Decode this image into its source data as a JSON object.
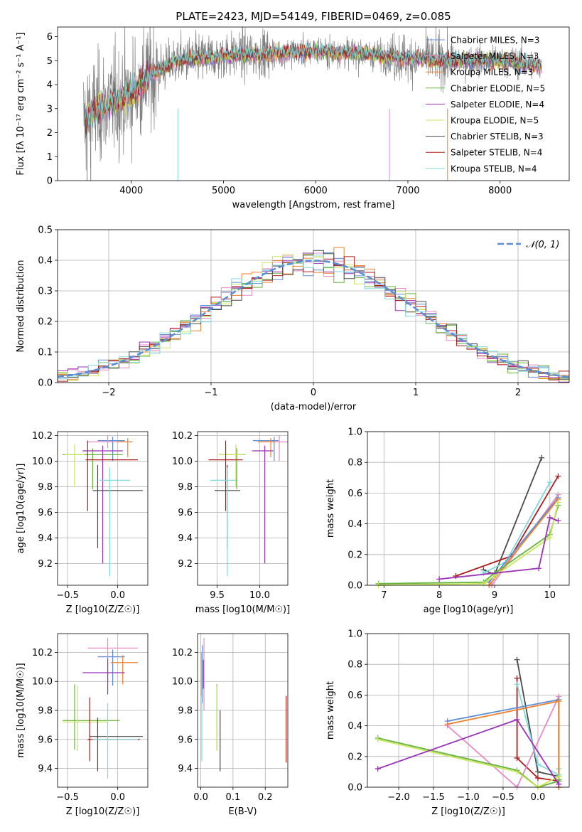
{
  "chart_data": [
    {
      "id": "spectrum",
      "type": "line",
      "title": "PLATE=2423, MJD=54149, FIBERID=0469, z=0.085",
      "xlabel": "wavelength [Angstrom, rest frame]",
      "ylabel": "Flux [fλ 10⁻¹⁷ erg cm⁻² s⁻¹ A⁻¹]",
      "xlim": [
        3200,
        8750
      ],
      "ylim": [
        0,
        6.4
      ],
      "xticks": [
        4000,
        5000,
        6000,
        7000,
        8000
      ],
      "yticks": [
        0,
        1,
        2,
        3,
        4,
        5,
        6
      ],
      "grid": false,
      "legend_position": "right",
      "legend": [
        {
          "label": "Chabrier MILES, N_SSP=3",
          "color": "#5b8ed6"
        },
        {
          "label": "Salpeter MILES, N_SSP=3",
          "color": "#e98ac6"
        },
        {
          "label": "Kroupa MILES, N_SSP=3",
          "color": "#f07f2c"
        },
        {
          "label": "Chabrier ELODIE, N_SSP=5",
          "color": "#66b33d"
        },
        {
          "label": "Salpeter ELODIE, N_SSP=4",
          "color": "#9b32b8"
        },
        {
          "label": "Kroupa ELODIE, N_SSP=5",
          "color": "#c8e65a"
        },
        {
          "label": "Chabrier STELIB, N_SSP=3",
          "color": "#4a4a4a"
        },
        {
          "label": "Salpeter STELIB, N_SSP=4",
          "color": "#b01c1c"
        },
        {
          "label": "Kroupa STELIB, N_SSP=4",
          "color": "#7fd9dc"
        }
      ],
      "data_color": "#808080",
      "data_approx": {
        "wave": [
          3500,
          3600,
          3800,
          4000,
          4200,
          4500,
          5000,
          5500,
          6000,
          6500,
          7000,
          7500,
          8000,
          8400
        ],
        "flux": [
          2.6,
          2.9,
          3.3,
          3.6,
          4.4,
          5.0,
          5.2,
          5.3,
          5.4,
          5.3,
          5.1,
          5.0,
          5.0,
          4.8
        ]
      }
    },
    {
      "id": "residuals",
      "type": "histogram",
      "xlabel": "(data-model)/error",
      "ylabel": "Normed distribution",
      "xlim": [
        -2.5,
        2.5
      ],
      "ylim": [
        0,
        0.5
      ],
      "xticks": [
        -2,
        -1,
        0,
        1,
        2
      ],
      "yticks": [
        0.0,
        0.1,
        0.2,
        0.3,
        0.4,
        0.5
      ],
      "grid": true,
      "legend": [
        {
          "label": "𝒩(0, 1)",
          "color": "#5b8ed6",
          "dashed": true
        }
      ],
      "bin_width": 0.1,
      "reference_curve": "normal(0,1)"
    },
    {
      "id": "age_vs_Z",
      "type": "errorbar",
      "xlabel": "Z [log10(Z/Z☉)]",
      "ylabel": "age  [log10(age/yr)]",
      "xlim": [
        -0.6,
        0.3
      ],
      "ylim": [
        9.03,
        10.23
      ],
      "xticks": [
        -0.5,
        0.0
      ],
      "yticks": [
        9.2,
        9.4,
        9.6,
        9.8,
        10.0,
        10.2
      ],
      "grid": true,
      "points": [
        {
          "color": "#5b8ed6",
          "x": -0.05,
          "xerr": [
            0.15,
            0.12
          ],
          "y": 10.16,
          "yerr": [
            0.16,
            0.03
          ]
        },
        {
          "color": "#e98ac6",
          "x": -0.1,
          "xerr": [
            0.2,
            0.2
          ],
          "y": 10.15,
          "yerr": [
            0.05,
            0.05
          ]
        },
        {
          "color": "#f07f2c",
          "x": 0.1,
          "xerr": [
            0.1,
            0.05
          ],
          "y": 10.15,
          "yerr": [
            0.12,
            0.03
          ]
        },
        {
          "color": "#66b33d",
          "x": -0.25,
          "xerr": [
            0.3,
            0.3
          ],
          "y": 10.05,
          "yerr": [
            0.27,
            0.05
          ]
        },
        {
          "color": "#9b32b8",
          "x": -0.15,
          "xerr": [
            0.2,
            0.2
          ],
          "y": 10.08,
          "yerr": [
            0.88,
            0.04
          ]
        },
        {
          "color": "#c8e65a",
          "x": -0.43,
          "xerr": [
            0.1,
            0.1
          ],
          "y": 10.05,
          "yerr": [
            0.25,
            0.08
          ]
        },
        {
          "color": "#4a4a4a",
          "x": -0.2,
          "xerr": [
            0.05,
            0.45
          ],
          "y": 9.77,
          "yerr": [
            0.45,
            0.2
          ]
        },
        {
          "color": "#b01c1c",
          "x": -0.3,
          "xerr": [
            0.02,
            0.5
          ],
          "y": 10.01,
          "yerr": [
            0.4,
            0.15
          ]
        },
        {
          "color": "#7fd9dc",
          "x": -0.08,
          "xerr": [
            0.1,
            0.2
          ],
          "y": 9.85,
          "yerr": [
            0.75,
            0.1
          ]
        }
      ]
    },
    {
      "id": "age_vs_mass",
      "type": "errorbar",
      "xlabel": "mass [log10(M/M☉)]",
      "ylabel": "",
      "xlim": [
        9.27,
        10.33
      ],
      "ylim": [
        9.03,
        10.23
      ],
      "xticks": [
        9.5,
        10.0
      ],
      "yticks": [
        9.2,
        9.4,
        9.6,
        9.8,
        10.0,
        10.2
      ],
      "grid": true,
      "points": [
        {
          "color": "#5b8ed6",
          "x": 10.17,
          "xerr": [
            0.25,
            0.05
          ],
          "y": 10.16,
          "yerr": [
            0.16,
            0.03
          ]
        },
        {
          "color": "#e98ac6",
          "x": 10.23,
          "xerr": [
            0.25,
            0.1
          ],
          "y": 10.15,
          "yerr": [
            0.15,
            0.05
          ]
        },
        {
          "color": "#f07f2c",
          "x": 10.13,
          "xerr": [
            0.15,
            0.05
          ],
          "y": 10.15,
          "yerr": [
            0.12,
            0.03
          ]
        },
        {
          "color": "#66b33d",
          "x": 9.73,
          "xerr": [
            0.2,
            0.1
          ],
          "y": 10.05,
          "yerr": [
            0.27,
            0.05
          ]
        },
        {
          "color": "#9b32b8",
          "x": 10.06,
          "xerr": [
            0.15,
            0.1
          ],
          "y": 10.08,
          "yerr": [
            0.88,
            0.04
          ]
        },
        {
          "color": "#c8e65a",
          "x": 9.72,
          "xerr": [
            0.2,
            0.1
          ],
          "y": 10.05,
          "yerr": [
            0.25,
            0.08
          ]
        },
        {
          "color": "#4a4a4a",
          "x": 9.62,
          "xerr": [
            0.15,
            0.15
          ],
          "y": 9.77,
          "yerr": [
            0.45,
            0.2
          ]
        },
        {
          "color": "#b01c1c",
          "x": 9.6,
          "xerr": [
            0.2,
            0.2
          ],
          "y": 10.01,
          "yerr": [
            0.4,
            0.15
          ]
        },
        {
          "color": "#7fd9dc",
          "x": 9.62,
          "xerr": [
            0.2,
            0.1
          ],
          "y": 9.85,
          "yerr": [
            0.75,
            0.1
          ]
        }
      ]
    },
    {
      "id": "weight_vs_age",
      "type": "line",
      "xlabel": "age  [log10(age/yr)]",
      "ylabel": "mass weight",
      "xlim": [
        6.7,
        10.35
      ],
      "ylim": [
        0,
        1.0
      ],
      "xticks": [
        7,
        8,
        9,
        10
      ],
      "yticks": [
        0.0,
        0.2,
        0.4,
        0.6,
        0.8,
        1.0
      ],
      "grid": true,
      "series": [
        {
          "color": "#4a4a4a",
          "x": [
            8.8,
            9.0,
            9.85
          ],
          "y": [
            0.1,
            0.07,
            0.83
          ]
        },
        {
          "color": "#b01c1c",
          "x": [
            8.3,
            9.3,
            10.15
          ],
          "y": [
            0.06,
            0.19,
            0.71
          ]
        },
        {
          "color": "#7fd9dc",
          "x": [
            8.8,
            9.2,
            10.0
          ],
          "y": [
            0.08,
            0.15,
            0.67
          ]
        },
        {
          "color": "#e98ac6",
          "x": [
            8.95,
            10.15
          ],
          "y": [
            0.0,
            0.59
          ]
        },
        {
          "color": "#5b8ed6",
          "x": [
            8.9,
            10.15
          ],
          "y": [
            0.02,
            0.57
          ]
        },
        {
          "color": "#f07f2c",
          "x": [
            8.9,
            10.15
          ],
          "y": [
            0.0,
            0.56
          ]
        },
        {
          "color": "#66b33d",
          "x": [
            6.9,
            8.8,
            9.0,
            10.0,
            10.15
          ],
          "y": [
            0.01,
            0.02,
            0.08,
            0.33,
            0.52
          ]
        },
        {
          "color": "#c8e65a",
          "x": [
            6.9,
            8.8,
            9.0,
            10.0,
            10.15
          ],
          "y": [
            0.0,
            0.01,
            0.06,
            0.31,
            0.54
          ]
        },
        {
          "color": "#9b32b8",
          "x": [
            8.0,
            9.8,
            10.0,
            10.15
          ],
          "y": [
            0.04,
            0.11,
            0.44,
            0.42
          ]
        }
      ]
    },
    {
      "id": "mass_vs_Z",
      "type": "errorbar",
      "xlabel": "Z [log10(Z/Z☉)]",
      "ylabel": "mass [log10(M/M☉)]",
      "xlim": [
        -0.6,
        0.3
      ],
      "ylim": [
        9.27,
        10.33
      ],
      "xticks": [
        -0.5,
        0.0
      ],
      "yticks": [
        9.4,
        9.6,
        9.8,
        10.0,
        10.2
      ],
      "grid": true,
      "points": [
        {
          "color": "#5b8ed6",
          "x": -0.05,
          "xerr": [
            0.15,
            0.12
          ],
          "y": 10.17,
          "yerr": [
            0.2,
            0.05
          ]
        },
        {
          "color": "#e98ac6",
          "x": -0.1,
          "xerr": [
            0.2,
            0.3
          ],
          "y": 10.23,
          "yerr": [
            0.25,
            0.07
          ]
        },
        {
          "color": "#f07f2c",
          "x": 0.05,
          "xerr": [
            0.12,
            0.15
          ],
          "y": 10.13,
          "yerr": [
            0.15,
            0.05
          ]
        },
        {
          "color": "#66b33d",
          "x": -0.43,
          "xerr": [
            0.12,
            0.45
          ],
          "y": 9.73,
          "yerr": [
            0.2,
            0.25
          ]
        },
        {
          "color": "#9b32b8",
          "x": -0.1,
          "xerr": [
            0.25,
            0.17
          ],
          "y": 10.06,
          "yerr": [
            0.15,
            0.1
          ]
        },
        {
          "color": "#c8e65a",
          "x": -0.4,
          "xerr": [
            0.15,
            0.3
          ],
          "y": 9.72,
          "yerr": [
            0.2,
            0.25
          ]
        },
        {
          "color": "#4a4a4a",
          "x": -0.2,
          "xerr": [
            0.08,
            0.45
          ],
          "y": 9.62,
          "yerr": [
            0.24,
            0.13
          ]
        },
        {
          "color": "#b01c1c",
          "x": -0.28,
          "xerr": [
            0.02,
            0.5
          ],
          "y": 9.6,
          "yerr": [
            0.15,
            0.29
          ]
        },
        {
          "color": "#7fd9dc",
          "x": -0.1,
          "xerr": [
            0.15,
            0.3
          ],
          "y": 9.6,
          "yerr": [
            0.27,
            0.25
          ]
        }
      ]
    },
    {
      "id": "mass_vs_EBV",
      "type": "errorbar",
      "xlabel": "E(B-V)",
      "ylabel": "",
      "xlim": [
        -0.01,
        0.27
      ],
      "ylim": [
        9.27,
        10.33
      ],
      "xticks": [
        0.0,
        0.1,
        0.2
      ],
      "yticks": [
        9.4,
        9.6,
        9.8,
        10.0,
        10.2
      ],
      "grid": true,
      "points": [
        {
          "color": "#5b8ed6",
          "x": 0.005,
          "xerr": [
            0,
            0
          ],
          "y": 10.05,
          "yerr": [
            0.2,
            0.2
          ]
        },
        {
          "color": "#e98ac6",
          "x": 0.01,
          "xerr": [
            0,
            0
          ],
          "y": 10.1,
          "yerr": [
            0.3,
            0.2
          ]
        },
        {
          "color": "#f07f2c",
          "x": 0.002,
          "xerr": [
            0,
            0
          ],
          "y": 10.0,
          "yerr": [
            0.1,
            0.2
          ]
        },
        {
          "color": "#66b33d",
          "x": 0.05,
          "xerr": [
            0,
            0
          ],
          "y": 9.73,
          "yerr": [
            0.2,
            0.25
          ]
        },
        {
          "color": "#9b32b8",
          "x": 0.008,
          "xerr": [
            0,
            0
          ],
          "y": 10.05,
          "yerr": [
            0.1,
            0.1
          ]
        },
        {
          "color": "#c8e65a",
          "x": 0.05,
          "xerr": [
            0,
            0
          ],
          "y": 9.72,
          "yerr": [
            0.2,
            0.25
          ]
        },
        {
          "color": "#4a4a4a",
          "x": 0.06,
          "xerr": [
            0,
            0
          ],
          "y": 9.6,
          "yerr": [
            0.22,
            0.2
          ]
        },
        {
          "color": "#b01c1c",
          "x": 0.265,
          "xerr": [
            0,
            0
          ],
          "y": 9.67,
          "yerr": [
            0.23,
            0.23
          ]
        },
        {
          "color": "#7fd9dc",
          "x": 0.003,
          "xerr": [
            0,
            0
          ],
          "y": 9.95,
          "yerr": [
            0.5,
            0.25
          ]
        }
      ]
    },
    {
      "id": "weight_vs_Z",
      "type": "line",
      "xlabel": "Z [log10(Z/Z☉)]",
      "ylabel": "mass weight",
      "xlim": [
        -2.45,
        0.45
      ],
      "ylim": [
        0,
        1.0
      ],
      "xticks": [
        -2.0,
        -1.5,
        -1.0,
        -0.5,
        0.0
      ],
      "yticks": [
        0.0,
        0.2,
        0.4,
        0.6,
        0.8,
        1.0
      ],
      "grid": true,
      "series": [
        {
          "color": "#4a4a4a",
          "x": [
            -0.3,
            0.0,
            0.3
          ],
          "y": [
            0.83,
            0.1,
            0.07
          ]
        },
        {
          "color": "#b01c1c",
          "x": [
            -0.3,
            -0.3,
            0.0,
            0.3
          ],
          "y": [
            0.71,
            0.19,
            0.06,
            0.04
          ]
        },
        {
          "color": "#7fd9dc",
          "x": [
            -0.3,
            0.0,
            0.3,
            0.3
          ],
          "y": [
            0.67,
            0.15,
            0.08,
            0.12
          ]
        },
        {
          "color": "#e98ac6",
          "x": [
            -1.3,
            -0.3,
            0.3,
            0.3
          ],
          "y": [
            0.4,
            0.0,
            0.59,
            0.02
          ]
        },
        {
          "color": "#5b8ed6",
          "x": [
            -1.3,
            0.3,
            0.3
          ],
          "y": [
            0.43,
            0.57,
            0.0
          ]
        },
        {
          "color": "#f07f2c",
          "x": [
            -1.3,
            0.3,
            0.3
          ],
          "y": [
            0.41,
            0.56,
            0.0
          ]
        },
        {
          "color": "#66b33d",
          "x": [
            -2.3,
            -0.3,
            0.0,
            0.3,
            0.3
          ],
          "y": [
            0.32,
            0.11,
            0.0,
            0.04,
            0.05
          ]
        },
        {
          "color": "#c8e65a",
          "x": [
            -2.3,
            -0.3,
            0.0,
            0.3
          ],
          "y": [
            0.31,
            0.1,
            0.0,
            0.07
          ]
        },
        {
          "color": "#9b32b8",
          "x": [
            -2.3,
            -0.3,
            0.3
          ],
          "y": [
            0.12,
            0.44,
            0.02
          ]
        }
      ]
    }
  ]
}
